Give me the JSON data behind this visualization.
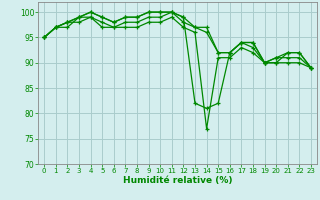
{
  "title": "",
  "xlabel": "Humidité relative (%)",
  "ylabel": "",
  "background_color": "#d4eeee",
  "grid_color": "#aacccc",
  "line_color": "#008800",
  "ylim": [
    70,
    102
  ],
  "xlim": [
    -0.5,
    23.5
  ],
  "yticks": [
    70,
    75,
    80,
    85,
    90,
    95,
    100
  ],
  "xticks": [
    0,
    1,
    2,
    3,
    4,
    5,
    6,
    7,
    8,
    9,
    10,
    11,
    12,
    13,
    14,
    15,
    16,
    17,
    18,
    19,
    20,
    21,
    22,
    23
  ],
  "series": [
    [
      95,
      97,
      97,
      99,
      100,
      99,
      98,
      99,
      99,
      100,
      100,
      100,
      99,
      82,
      81,
      82,
      92,
      94,
      94,
      90,
      90,
      92,
      92,
      89
    ],
    [
      95,
      97,
      98,
      99,
      100,
      99,
      98,
      99,
      99,
      100,
      100,
      100,
      99,
      97,
      97,
      92,
      92,
      94,
      94,
      90,
      91,
      92,
      92,
      89
    ],
    [
      95,
      97,
      98,
      99,
      99,
      98,
      97,
      98,
      98,
      99,
      99,
      100,
      98,
      97,
      96,
      92,
      92,
      94,
      93,
      90,
      91,
      91,
      91,
      89
    ],
    [
      95,
      97,
      98,
      98,
      99,
      97,
      97,
      97,
      97,
      98,
      98,
      99,
      97,
      96,
      77,
      91,
      91,
      93,
      92,
      90,
      90,
      90,
      90,
      89
    ]
  ]
}
